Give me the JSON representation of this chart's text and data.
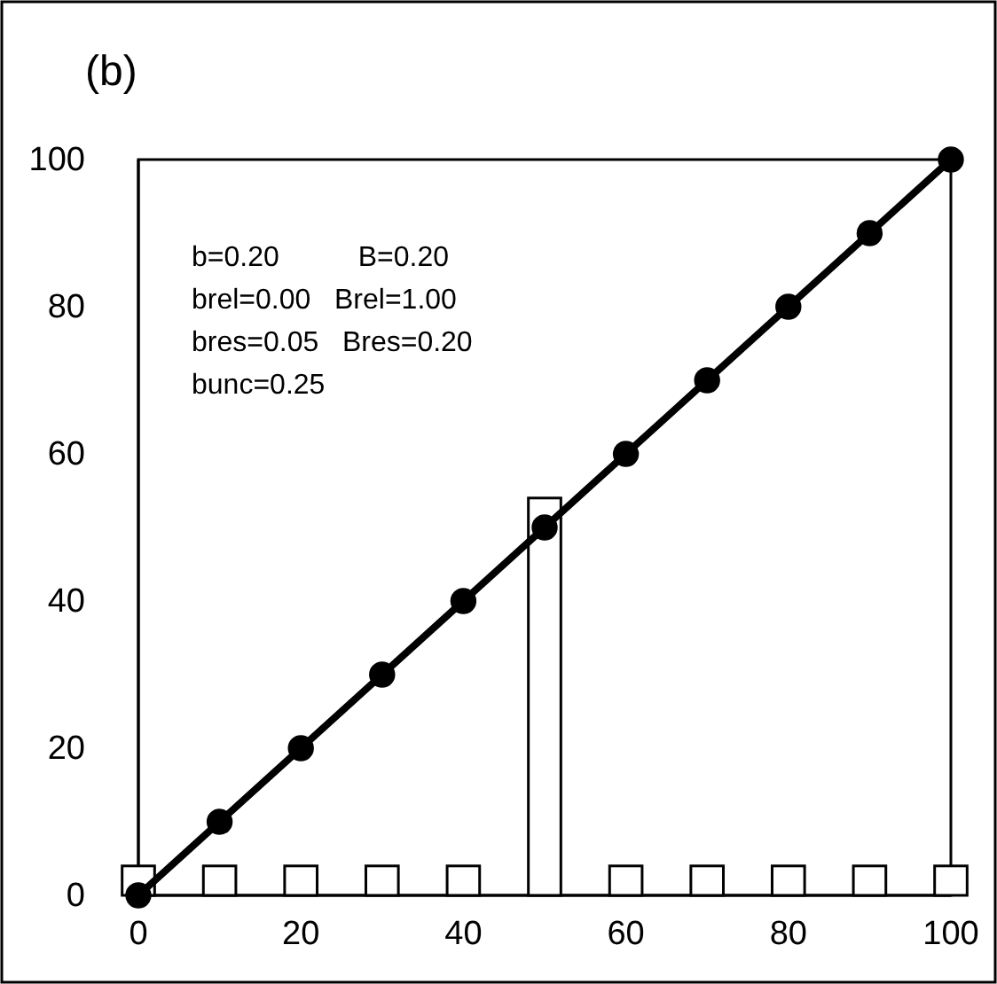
{
  "chart_data": {
    "type": "line",
    "title": "(b)",
    "xlim": [
      0,
      100
    ],
    "ylim": [
      0,
      100
    ],
    "xticks": [
      0,
      20,
      40,
      60,
      80,
      100
    ],
    "yticks": [
      0,
      20,
      40,
      60,
      80,
      100
    ],
    "grid": false,
    "marker": "circle",
    "line_style": "solid",
    "annotations": [
      "b=0.20          B=0.20",
      "brel=0.00   Brel=1.00",
      "bres=0.05   Bres=0.20",
      "bunc=0.25"
    ],
    "series": [
      {
        "type": "bar",
        "color": "#ffffff",
        "x": [
          0,
          10,
          20,
          30,
          40,
          50,
          60,
          70,
          80,
          90,
          100
        ],
        "values": [
          4,
          4,
          4,
          4,
          4,
          54,
          4,
          4,
          4,
          4,
          4
        ]
      },
      {
        "color": "#000000",
        "x": [
          0,
          10,
          20,
          30,
          40,
          50,
          60,
          70,
          80,
          90,
          100
        ],
        "values": [
          0,
          10,
          20,
          30,
          40,
          50,
          60,
          70,
          80,
          90,
          100
        ]
      }
    ]
  }
}
